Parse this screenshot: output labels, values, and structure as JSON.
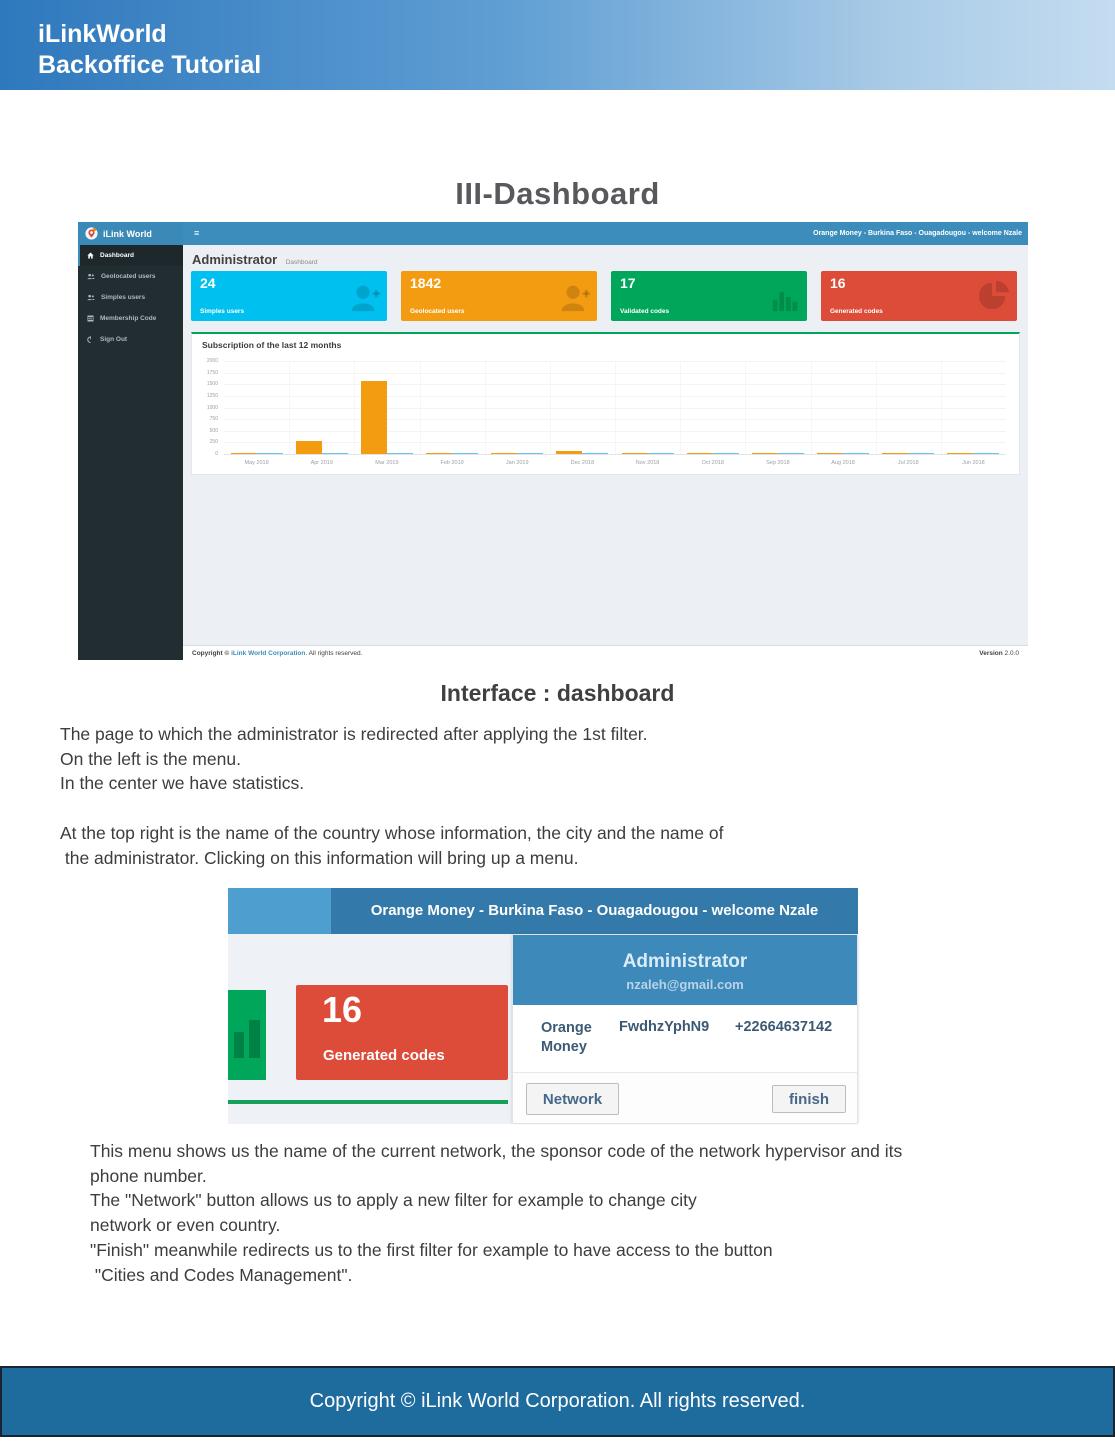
{
  "page": {
    "header": {
      "line1": "iLinkWorld",
      "line2": "Backoffice Tutorial"
    },
    "title": "III-Dashboard",
    "caption": "Interface : dashboard",
    "paragraph1": [
      "The page to which the administrator is redirected after applying the 1st filter.",
      "On the left is the menu.",
      "In the center we have statistics."
    ],
    "paragraph2": [
      "At the top right is the name of the country whose information, the city and the name of",
      " the administrator. Clicking on this information will bring up a menu."
    ],
    "paragraph3": [
      "This menu shows us the name of the current network, the sponsor code of the network hypervisor and its",
      "phone number.",
      "The \"Network\" button allows us to apply a new filter for example to change city",
      "network or even country.",
      "\"Finish\" meanwhile redirects us to the first filter for example to have access to the button",
      " \"Cities and Codes Management\"."
    ],
    "footer": "Copyright © iLink World Corporation. All rights reserved."
  },
  "dashboard": {
    "brand": "iLink World",
    "menu_icon": "≡",
    "topbar_right": "Orange Money - Burkina Faso - Ouagadougou - welcome Nzale",
    "sidebar": {
      "items": [
        {
          "label": "Dashboard",
          "icon": "home-icon",
          "active": true
        },
        {
          "label": "Geolocated users",
          "icon": "users-icon",
          "active": false
        },
        {
          "label": "Simples users",
          "icon": "users-icon",
          "active": false
        },
        {
          "label": "Membership Code",
          "icon": "table-icon",
          "active": false
        },
        {
          "label": "Sign Out",
          "icon": "power-icon",
          "active": false
        }
      ]
    },
    "heading": {
      "title": "Administrator",
      "subtitle": "Dashboard"
    },
    "cards": [
      {
        "value": "24",
        "label": "Simples users",
        "color": "#00c0ef",
        "icon": "user-plus-icon"
      },
      {
        "value": "1842",
        "label": "Geolocated users",
        "color": "#f39c12",
        "icon": "user-plus-icon"
      },
      {
        "value": "17",
        "label": "Validated codes",
        "color": "#00a65a",
        "icon": "bar-chart-icon"
      },
      {
        "value": "16",
        "label": "Generated codes",
        "color": "#dd4b39",
        "icon": "pie-chart-icon"
      }
    ],
    "chart_title": "Subscription of the last 12 months",
    "footer": {
      "copyright_prefix": "Copyright © ",
      "link": "iLink World Corporation",
      "suffix": ". All rights reserved.",
      "version_label": "Version",
      "version": "2.0.0"
    }
  },
  "chart_data": {
    "type": "bar",
    "title": "Subscription of the last 12 months",
    "categories": [
      "May 2019",
      "Apr 2019",
      "Mar 2019",
      "Feb 2019",
      "Jan 2019",
      "Dec 2018",
      "Nov 2018",
      "Oct 2018",
      "Sep 2018",
      "Aug 2018",
      "Jul 2018",
      "Jun 2018"
    ],
    "series": [
      {
        "name": "series-orange",
        "color": "#f39c12",
        "values": [
          10,
          270,
          1560,
          15,
          10,
          60,
          15,
          10,
          10,
          15,
          10,
          15
        ]
      },
      {
        "name": "series-cyan",
        "color": "#67c6ee",
        "values": [
          15,
          15,
          25,
          20,
          15,
          20,
          15,
          12,
          15,
          12,
          15,
          15
        ]
      }
    ],
    "xlabel": "",
    "ylabel": "",
    "ylim": [
      0,
      2000
    ],
    "yticks": [
      0,
      250,
      500,
      750,
      1000,
      1250,
      1500,
      1750,
      2000
    ],
    "grid": true,
    "legend": "none"
  },
  "menu_popup": {
    "topbar_text": "Orange Money - Burkina Faso - Ouagadougou - welcome Nzale",
    "card": {
      "value": "16",
      "label": "Generated codes"
    },
    "panel": {
      "title": "Administrator",
      "email": "nzaleh@gmail.com",
      "network": "Orange Money",
      "sponsor_code": "FwdhzYphN9",
      "phone": "+22664637142",
      "buttons": [
        {
          "label": "Network"
        },
        {
          "label": "finish"
        }
      ]
    }
  }
}
